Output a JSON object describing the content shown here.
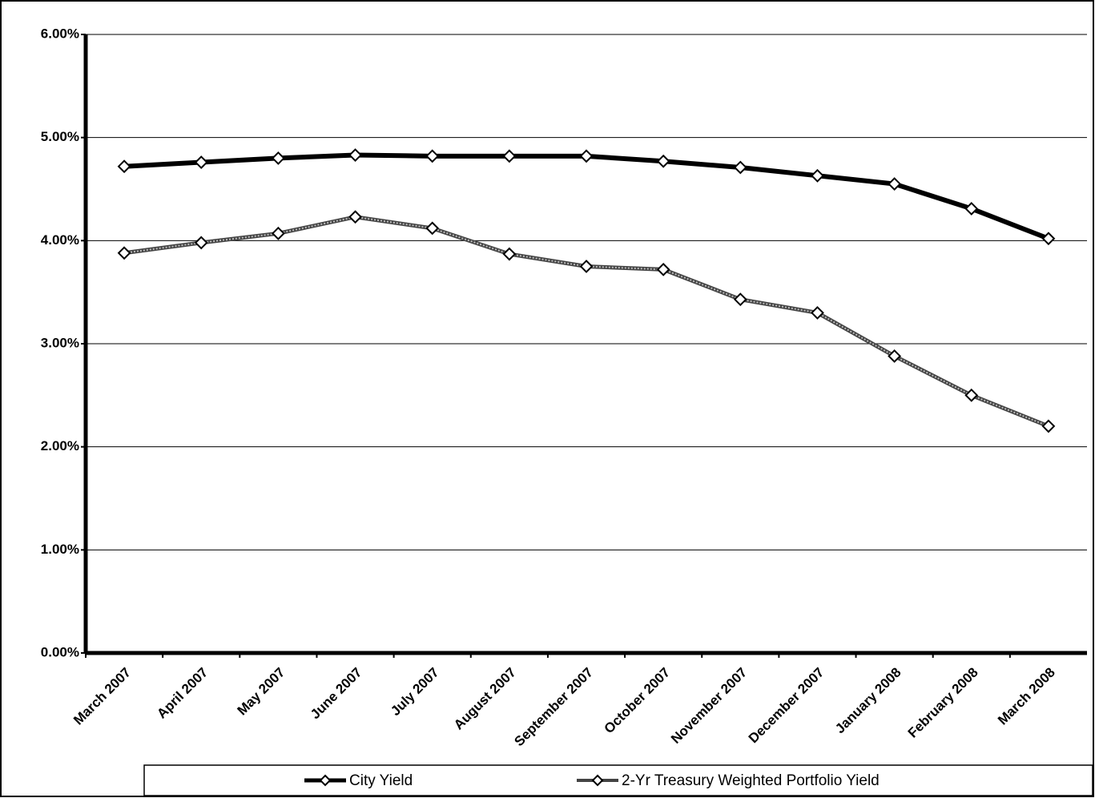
{
  "chart_data": {
    "type": "line",
    "categories": [
      "March 2007",
      "April 2007",
      "May 2007",
      "June 2007",
      "July 2007",
      "August 2007",
      "September 2007",
      "October 2007",
      "November 2007",
      "December 2007",
      "January 2008",
      "February 2008",
      "March 2008"
    ],
    "series": [
      {
        "name": "City Yield",
        "color": "#000000",
        "values": [
          4.72,
          4.76,
          4.8,
          4.83,
          4.82,
          4.82,
          4.82,
          4.77,
          4.71,
          4.63,
          4.55,
          4.31,
          4.02
        ]
      },
      {
        "name": "2-Yr Treasury Weighted Portfolio Yield",
        "color": "#444444",
        "values": [
          3.88,
          3.98,
          4.07,
          4.23,
          4.12,
          3.87,
          3.75,
          3.72,
          3.43,
          3.3,
          2.88,
          2.5,
          2.2
        ]
      }
    ],
    "ylim": [
      0,
      6
    ],
    "yticks": [
      {
        "value": 0,
        "label": "0.00%"
      },
      {
        "value": 1,
        "label": "1.00%"
      },
      {
        "value": 2,
        "label": "2.00%"
      },
      {
        "value": 3,
        "label": "3.00%"
      },
      {
        "value": 4,
        "label": "4.00%"
      },
      {
        "value": 5,
        "label": "5.00%"
      },
      {
        "value": 6,
        "label": "6.00%"
      }
    ],
    "grid": true,
    "legend": "bottom"
  }
}
